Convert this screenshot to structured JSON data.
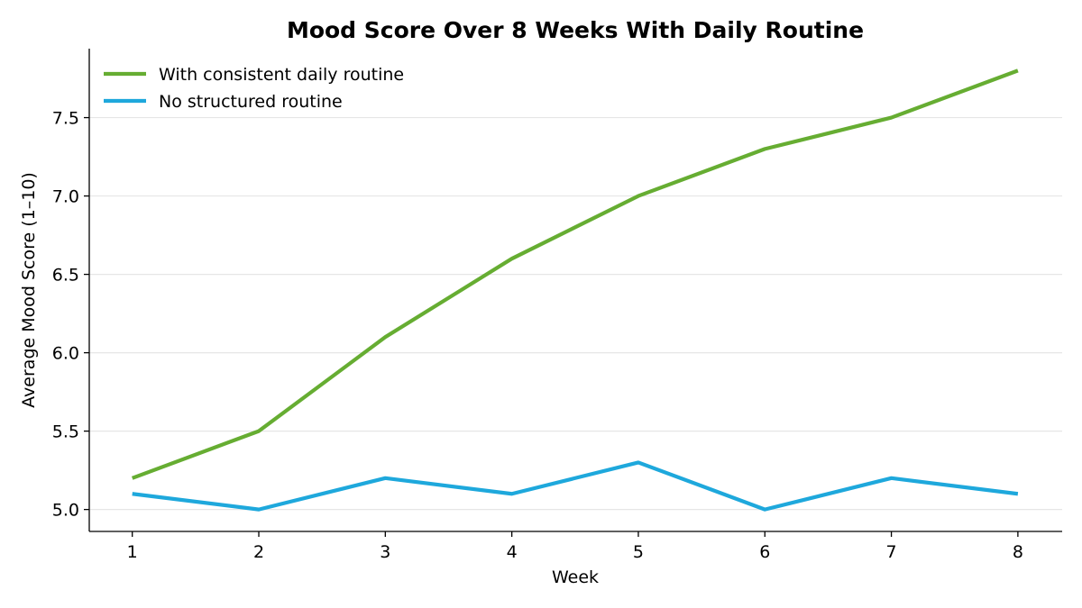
{
  "chart_data": {
    "type": "line",
    "title": "Mood Score Over 8 Weeks With Daily Routine",
    "xlabel": "Week",
    "ylabel": "Average Mood Score (1–10)",
    "x": [
      1,
      2,
      3,
      4,
      5,
      6,
      7,
      8
    ],
    "x_tick_labels": [
      "1",
      "2",
      "3",
      "4",
      "5",
      "6",
      "7",
      "8"
    ],
    "xlim": [
      0.66,
      8.35
    ],
    "ylim": [
      4.86,
      7.94
    ],
    "y_ticks": [
      5.0,
      5.5,
      6.0,
      6.5,
      7.0,
      7.5
    ],
    "y_tick_labels": [
      "5.0",
      "5.5",
      "6.0",
      "6.5",
      "7.0",
      "7.5"
    ],
    "grid": "horizontal",
    "legend_position": "top-left",
    "series": [
      {
        "name": "With consistent daily routine",
        "color": "#66ad32",
        "values": [
          5.2,
          5.5,
          6.1,
          6.6,
          7.0,
          7.3,
          7.5,
          7.8
        ]
      },
      {
        "name": "No structured routine",
        "color": "#1ea8dc",
        "values": [
          5.1,
          5.0,
          5.2,
          5.1,
          5.3,
          5.0,
          5.2,
          5.1
        ]
      }
    ]
  }
}
